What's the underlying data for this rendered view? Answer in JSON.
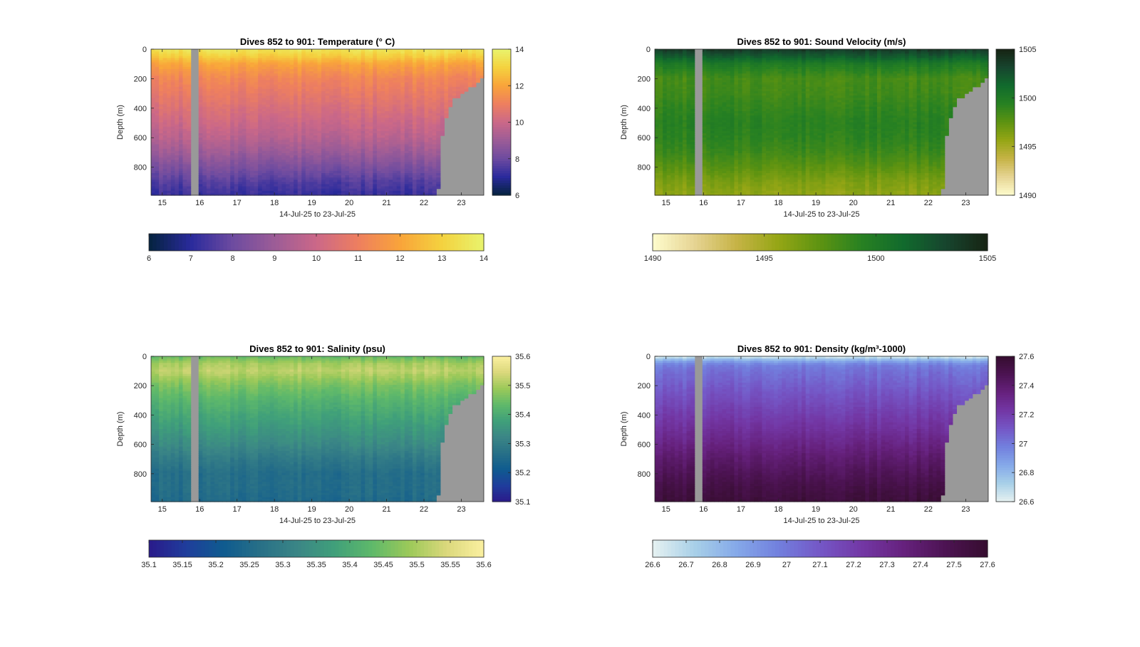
{
  "figure": {
    "xlabel": "14-Jul-25 to 23-Jul-25",
    "ylabel": "Depth (m)",
    "x_ticks": [
      "15",
      "16",
      "17",
      "18",
      "19",
      "20",
      "21",
      "22",
      "23"
    ],
    "y_ticks": [
      "0",
      "200",
      "400",
      "600",
      "800"
    ],
    "background_color": "#ffffff",
    "nodata_color": "#999999"
  },
  "chart_data": [
    {
      "type": "heatmap",
      "title": "Dives 852 to 901: Temperature (° C)",
      "variable": "temperature",
      "x_range_days": [
        14.7,
        23.6
      ],
      "y_range_m": [
        0,
        990
      ],
      "clim": [
        6,
        14
      ],
      "colormap": "thermal",
      "colorbar_ticks": [
        "6",
        "8",
        "10",
        "12",
        "14"
      ],
      "horizontal_colorbar_ticks": [
        "6",
        "7",
        "8",
        "9",
        "10",
        "11",
        "12",
        "13",
        "14"
      ],
      "profile_depth_m": [
        0,
        50,
        100,
        200,
        300,
        400,
        500,
        600,
        700,
        800,
        900,
        990
      ],
      "profile_values": [
        13.6,
        12.9,
        12.0,
        11.2,
        10.8,
        10.4,
        10.0,
        9.6,
        9.0,
        8.3,
        7.6,
        7.2
      ]
    },
    {
      "type": "heatmap",
      "title": "Dives 852 to 901: Sound Velocity (m/s)",
      "variable": "sound_velocity",
      "x_range_days": [
        14.7,
        23.6
      ],
      "y_range_m": [
        0,
        990
      ],
      "clim": [
        1490,
        1505
      ],
      "colormap": "speed",
      "colorbar_ticks": [
        "1490",
        "1495",
        "1500",
        "1505"
      ],
      "horizontal_colorbar_ticks": [
        "1490",
        "1495",
        "1500",
        "1505"
      ],
      "profile_depth_m": [
        0,
        50,
        100,
        200,
        300,
        400,
        500,
        600,
        700,
        800,
        900,
        990
      ],
      "profile_values": [
        1503.8,
        1502.0,
        1500.0,
        1498.3,
        1498.5,
        1499.0,
        1499.4,
        1499.2,
        1498.6,
        1497.6,
        1496.4,
        1495.8
      ]
    },
    {
      "type": "heatmap",
      "title": "Dives 852 to 901: Salinity (psu)",
      "variable": "salinity",
      "x_range_days": [
        14.7,
        23.6
      ],
      "y_range_m": [
        0,
        990
      ],
      "clim": [
        35.1,
        35.6
      ],
      "colormap": "haline",
      "colorbar_ticks": [
        "35.1",
        "35.2",
        "35.3",
        "35.4",
        "35.5",
        "35.6"
      ],
      "horizontal_colorbar_ticks": [
        "35.1",
        "35.15",
        "35.2",
        "35.25",
        "35.3",
        "35.35",
        "35.4",
        "35.45",
        "35.5",
        "35.55",
        "35.6"
      ],
      "profile_depth_m": [
        0,
        50,
        100,
        200,
        300,
        400,
        500,
        600,
        700,
        800,
        900,
        990
      ],
      "profile_values": [
        35.44,
        35.5,
        35.52,
        35.46,
        35.42,
        35.39,
        35.36,
        35.33,
        35.29,
        35.26,
        35.26,
        35.25
      ]
    },
    {
      "type": "heatmap",
      "title": "Dives 852 to 901: Density (kg/m³-1000)",
      "variable": "density",
      "x_range_days": [
        14.7,
        23.6
      ],
      "y_range_m": [
        0,
        990
      ],
      "clim": [
        26.6,
        27.6
      ],
      "colormap": "dense",
      "colorbar_ticks": [
        "26.6",
        "26.8",
        "27",
        "27.2",
        "27.4",
        "27.6"
      ],
      "horizontal_colorbar_ticks": [
        "26.6",
        "26.7",
        "26.8",
        "26.9",
        "27",
        "27.1",
        "27.2",
        "27.3",
        "27.4",
        "27.5",
        "27.6"
      ],
      "profile_depth_m": [
        0,
        30,
        60,
        100,
        200,
        300,
        400,
        500,
        600,
        700,
        800,
        900,
        990
      ],
      "profile_values": [
        26.62,
        26.85,
        26.98,
        27.02,
        27.08,
        27.14,
        27.2,
        27.26,
        27.33,
        27.4,
        27.46,
        27.52,
        27.56
      ]
    }
  ],
  "colormaps": {
    "thermal": [
      "#04233e",
      "#2a2a9c",
      "#6d4ba0",
      "#9c5c97",
      "#cb6888",
      "#ee7f5f",
      "#f9a43a",
      "#f4d23f",
      "#e9f46d"
    ],
    "speed": [
      "#fefccd",
      "#e6d493",
      "#c6b346",
      "#95a615",
      "#5d9311",
      "#278122",
      "#116a2d",
      "#17452e",
      "#172313"
    ],
    "haline": [
      "#2a1a8a",
      "#1f3d9c",
      "#0f5b8f",
      "#287087",
      "#3b8686",
      "#40a07a",
      "#5fb96a",
      "#9cc959",
      "#dbd87c",
      "#fbf0a0"
    ],
    "dense": [
      "#e6f1f1",
      "#a8d0e8",
      "#85a9e9",
      "#7280de",
      "#7457c6",
      "#7337a5",
      "#66217d",
      "#4c1352",
      "#360d2f"
    ]
  },
  "gap": {
    "x_days": [
      15.78,
      15.93
    ]
  },
  "seafloor": {
    "steps": [
      [
        22.33,
        940
      ],
      [
        22.4,
        580
      ],
      [
        22.55,
        460
      ],
      [
        22.68,
        390
      ],
      [
        22.8,
        330
      ],
      [
        22.95,
        300
      ],
      [
        23.08,
        280
      ],
      [
        23.2,
        255
      ],
      [
        23.35,
        225
      ],
      [
        23.48,
        195
      ],
      [
        23.6,
        195
      ]
    ]
  }
}
